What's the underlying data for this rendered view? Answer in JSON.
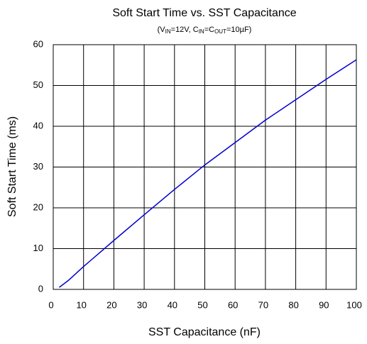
{
  "chart_data": {
    "type": "line",
    "title": "Soft Start Time vs. SST Capacitance",
    "subtitle": [
      "(V",
      "IN",
      "=12V, C",
      "IN",
      "=C",
      "OUT",
      "=10µF)"
    ],
    "x_label": "SST Capacitance (nF)",
    "y_label": "Soft Start Time (ms)",
    "x": [
      2,
      5,
      10,
      15,
      20,
      30,
      40,
      50,
      60,
      70,
      80,
      90,
      100
    ],
    "series": [
      {
        "name": "Soft Start Time",
        "color": "#0000d0",
        "values": [
          0.5,
          2.2,
          5.6,
          8.8,
          12,
          18.3,
          24.5,
          30.5,
          36,
          41.5,
          46.5,
          51.5,
          56.3
        ]
      }
    ],
    "xlim": [
      0,
      100
    ],
    "xticks": [
      0,
      10,
      20,
      30,
      40,
      50,
      60,
      70,
      80,
      90,
      100
    ],
    "ylim": [
      0,
      60
    ],
    "yticks": [
      0,
      10,
      20,
      30,
      40,
      50,
      60
    ],
    "grid": true
  }
}
